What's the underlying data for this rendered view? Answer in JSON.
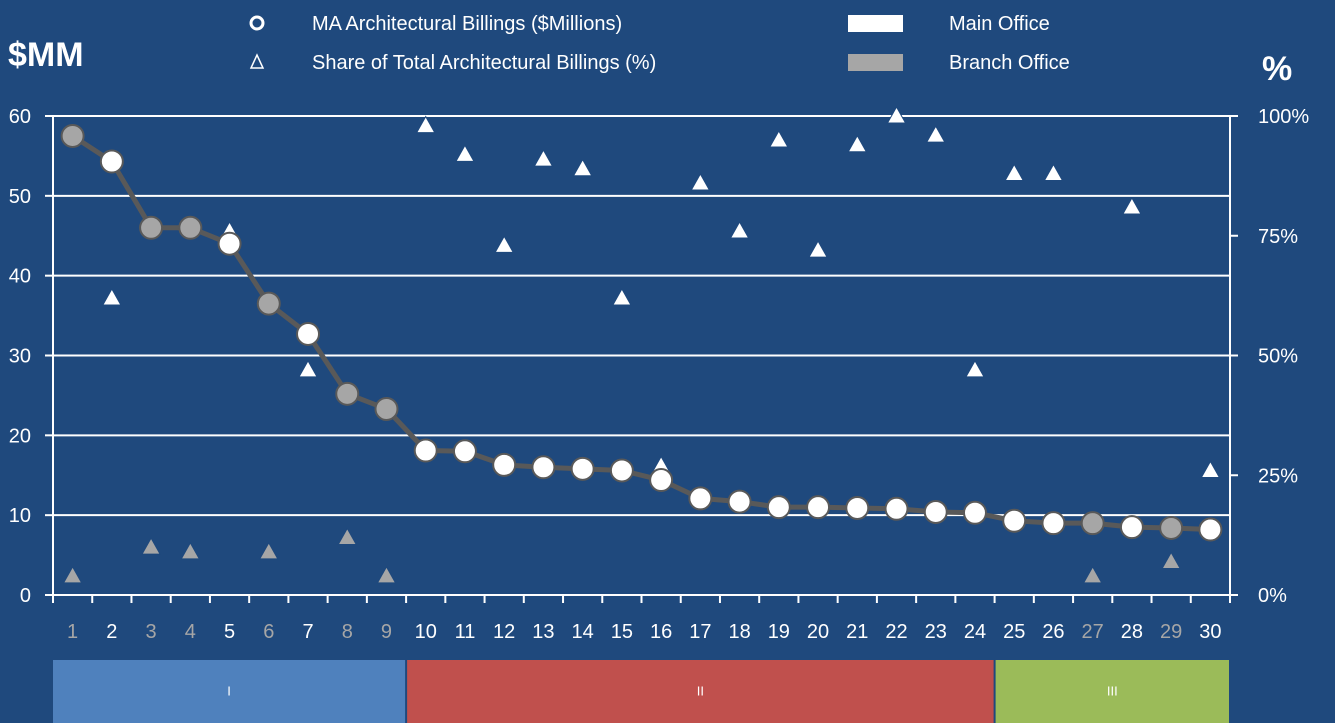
{
  "colors": {
    "background": "#1f497d",
    "main_office": "#ffffff",
    "branch_office": "#a6a6a6",
    "line": "#595959",
    "gridline": "#ffffff",
    "tier_I": "#4f81bd",
    "tier_II": "#c0504d",
    "tier_III": "#9bbb59",
    "tick_label": "#ffffff",
    "tick_label_branch": "#a6a6a6"
  },
  "chart_data": {
    "type": "line",
    "left_axis_unit": "$MM",
    "right_axis_unit": "%",
    "ylim_left": [
      0,
      60
    ],
    "yticks_left": [
      0,
      10,
      20,
      30,
      40,
      50,
      60
    ],
    "ylim_right": [
      0,
      100
    ],
    "yticks_right": [
      0,
      25,
      50,
      75,
      100
    ],
    "yticklabels_right": [
      "0%",
      "25%",
      "50%",
      "75%",
      "100%"
    ],
    "grid": true,
    "legend": {
      "placement": "top",
      "entries": [
        {
          "label": "MA Architectural Billings ($Millions)",
          "marker": "circle"
        },
        {
          "label": "Share of Total Architectural Billings (%)",
          "marker": "triangle"
        },
        {
          "label": "Main Office",
          "marker": "white-box"
        },
        {
          "label": "Branch Office",
          "marker": "gray-box"
        }
      ]
    },
    "x": [
      1,
      2,
      3,
      4,
      5,
      6,
      7,
      8,
      9,
      10,
      11,
      12,
      13,
      14,
      15,
      16,
      17,
      18,
      19,
      20,
      21,
      22,
      23,
      24,
      25,
      26,
      27,
      28,
      29,
      30
    ],
    "office_type": [
      "branch",
      "main",
      "branch",
      "branch",
      "main",
      "branch",
      "main",
      "branch",
      "branch",
      "main",
      "main",
      "main",
      "main",
      "main",
      "main",
      "main",
      "main",
      "main",
      "main",
      "main",
      "main",
      "main",
      "main",
      "main",
      "main",
      "main",
      "branch",
      "main",
      "branch",
      "main"
    ],
    "series": [
      {
        "name": "MA Architectural Billings ($Millions)",
        "axis": "left",
        "marker": "circle",
        "values": [
          57.5,
          54.3,
          46.0,
          46.0,
          44.0,
          36.5,
          32.7,
          25.2,
          23.3,
          18.1,
          18.0,
          16.3,
          16.0,
          15.8,
          15.6,
          14.4,
          12.1,
          11.7,
          11.0,
          11.0,
          10.9,
          10.8,
          10.4,
          10.3,
          9.3,
          9.0,
          9.0,
          8.5,
          8.4,
          8.2
        ]
      },
      {
        "name": "Share of Total Architectural Billings (%)",
        "axis": "right",
        "marker": "triangle",
        "values": [
          4,
          62,
          10,
          9,
          76,
          9,
          47,
          12,
          4,
          98,
          92,
          73,
          91,
          89,
          62,
          27,
          86,
          76,
          95,
          72,
          94,
          100,
          96,
          47,
          88,
          88,
          4,
          81,
          7,
          26
        ]
      }
    ],
    "tiers": [
      {
        "label": "I",
        "from": 1,
        "to": 9
      },
      {
        "label": "II",
        "from": 10,
        "to": 24
      },
      {
        "label": "III",
        "from": 25,
        "to": 30
      }
    ]
  }
}
